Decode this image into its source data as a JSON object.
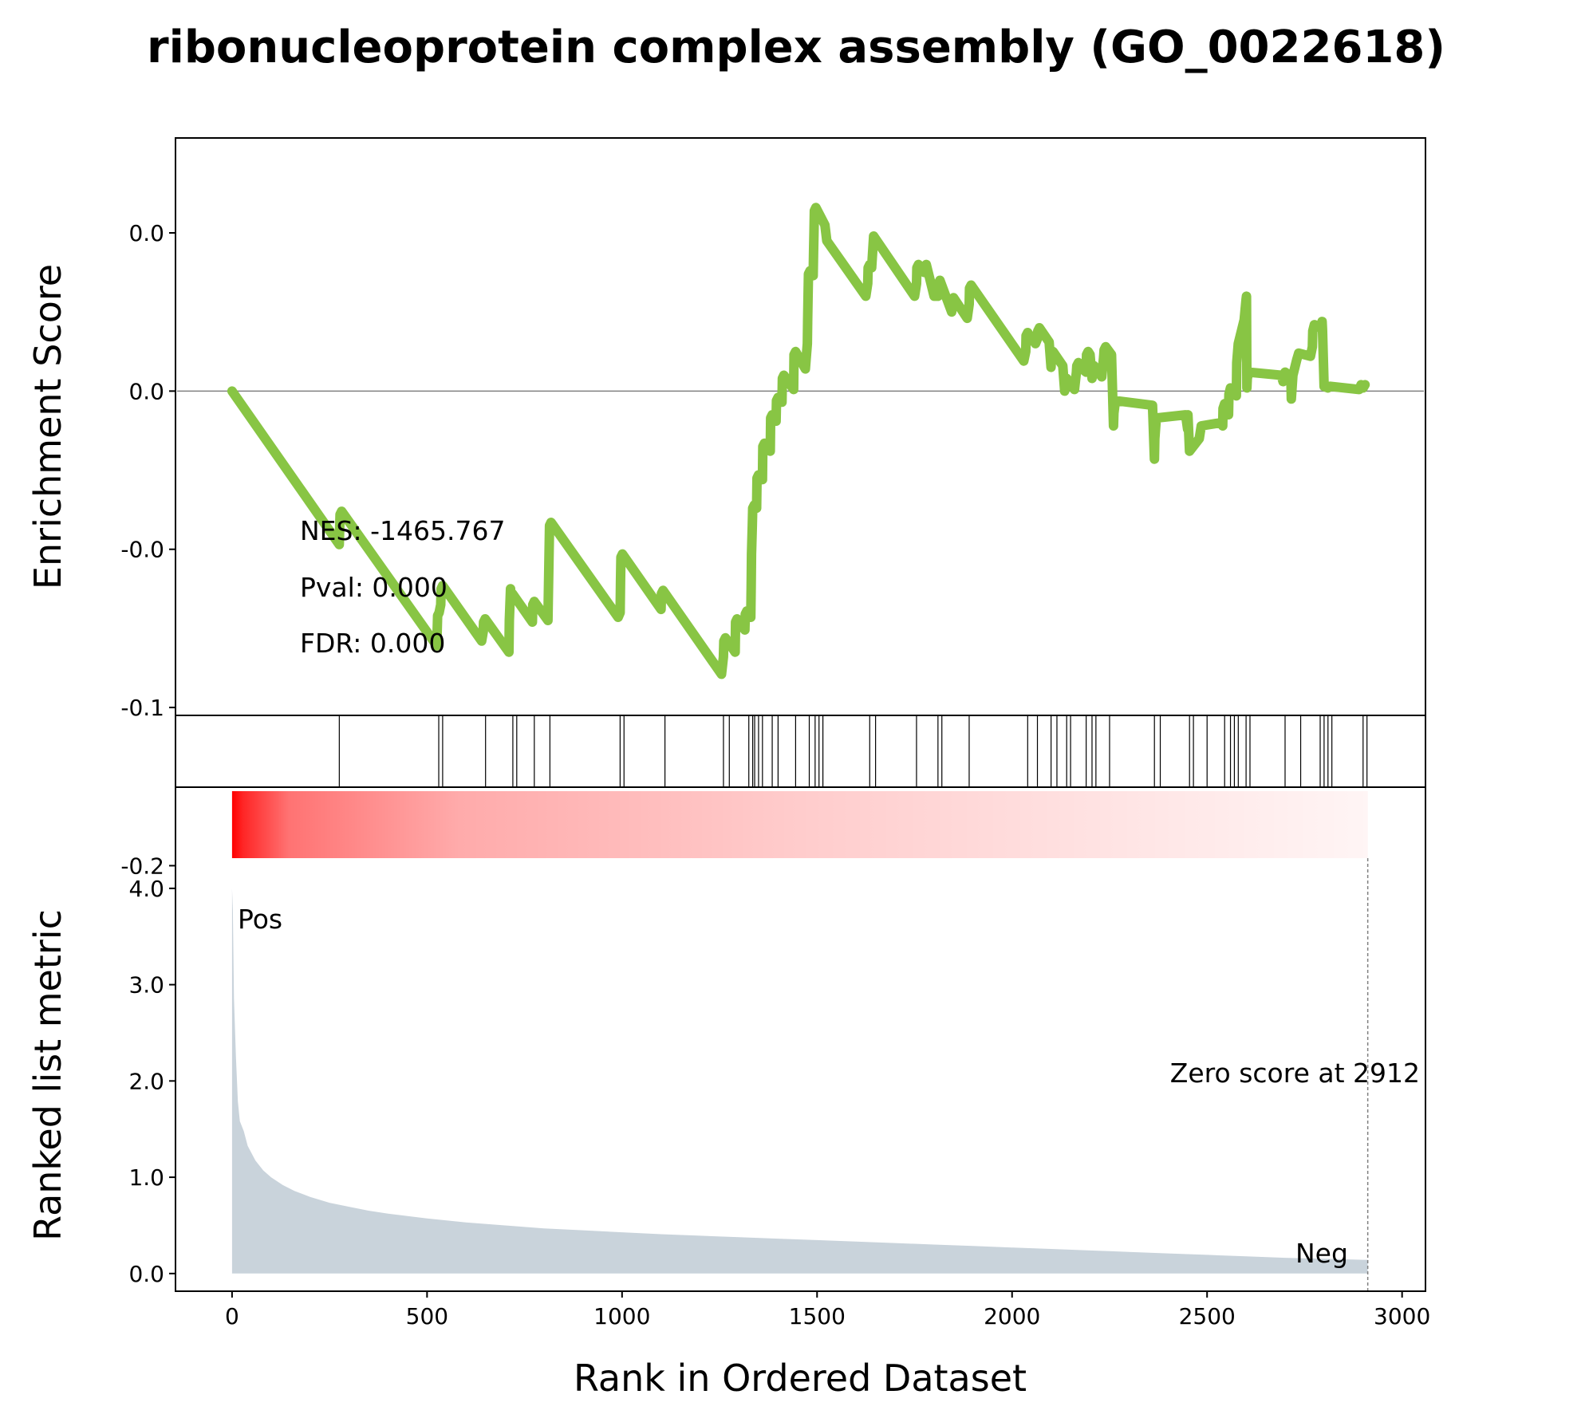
{
  "chart_data": {
    "type": "line",
    "title": "ribonucleoprotein complex assembly (GO_0022618)",
    "xlabel": "Rank in Ordered Dataset",
    "xlim": [
      -145,
      3060
    ],
    "x_ticks": [
      "0",
      "500",
      "1000",
      "1500",
      "2000",
      "2500",
      "3000"
    ],
    "colors": {
      "es_line": "#88c544",
      "metric_fill": "#c9d3db",
      "pos_label": "#ff0000",
      "neg_label": "#0000ff",
      "heat": "#ff0000"
    },
    "enrichment": {
      "ylabel": "Enrichment Score",
      "ylim": [
        -0.205,
        0.16
      ],
      "y_ticks": [
        {
          "value": 0.1,
          "label": "0.0"
        },
        {
          "value": 0.0,
          "label": "0.0"
        },
        {
          "value": -0.1,
          "label": "-0.0"
        },
        {
          "value": -0.2,
          "label": "-0.1"
        },
        {
          "value": -0.3,
          "label": "-0.2"
        }
      ],
      "stats": {
        "nes": "NES: -1465.767",
        "pval": "Pval: 0.000",
        "fdr": "FDR: 0.000"
      },
      "es_x": [
        0,
        275,
        276,
        277,
        281,
        525,
        526,
        527,
        531,
        535,
        536,
        540,
        640,
        644,
        645,
        649,
        710,
        711,
        714,
        715,
        719,
        770,
        771,
        775,
        810,
        811,
        812,
        813,
        814,
        818,
        990,
        995,
        996,
        997,
        1001,
        1100,
        1101,
        1105,
        1255,
        1260,
        1261,
        1265,
        1290,
        1291,
        1295,
        1315,
        1316,
        1320,
        1330,
        1331,
        1332,
        1334,
        1335,
        1339,
        1345,
        1346,
        1350,
        1360,
        1361,
        1365,
        1380,
        1381,
        1385,
        1395,
        1396,
        1400,
        1410,
        1411,
        1415,
        1440,
        1441,
        1445,
        1470,
        1475,
        1476,
        1477,
        1478,
        1482,
        1490,
        1491,
        1492,
        1493,
        1497,
        1520,
        1525,
        1625,
        1630,
        1631,
        1635,
        1640,
        1645,
        1750,
        1755,
        1756,
        1760,
        1775,
        1780,
        1800,
        1810,
        1811,
        1815,
        1845,
        1850,
        1885,
        1890,
        1891,
        1895,
        2030,
        2035,
        2036,
        2040,
        2060,
        2065,
        2066,
        2070,
        2095,
        2100,
        2101,
        2105,
        2130,
        2135,
        2136,
        2140,
        2160,
        2165,
        2166,
        2170,
        2185,
        2190,
        2191,
        2195,
        2200,
        2205,
        2206,
        2210,
        2230,
        2235,
        2236,
        2240,
        2255,
        2260,
        2261,
        2265,
        2360,
        2365,
        2366,
        2370,
        2445,
        2450,
        2451,
        2455,
        2480,
        2485,
        2535,
        2540,
        2541,
        2545,
        2550,
        2555,
        2556,
        2560,
        2570,
        2575,
        2576,
        2580,
        2595,
        2600,
        2601,
        2602,
        2603,
        2607,
        2690,
        2695,
        2696,
        2700,
        2710,
        2715,
        2716,
        2720,
        2730,
        2735,
        2765,
        2770,
        2771,
        2775,
        2790,
        2795,
        2796,
        2800,
        2810,
        2815,
        2890,
        2895,
        2900,
        2905,
        2910,
        2915,
        2920
      ],
      "es_y": [
        0.0,
        -0.097,
        -0.087,
        -0.078,
        -0.076,
        -0.161,
        -0.151,
        -0.142,
        -0.14,
        -0.135,
        -0.125,
        -0.123,
        -0.158,
        -0.152,
        -0.146,
        -0.144,
        -0.165,
        -0.145,
        -0.125,
        -0.13,
        -0.128,
        -0.146,
        -0.135,
        -0.133,
        -0.145,
        -0.13,
        -0.115,
        -0.1,
        -0.085,
        -0.083,
        -0.143,
        -0.14,
        -0.12,
        -0.105,
        -0.103,
        -0.138,
        -0.128,
        -0.126,
        -0.179,
        -0.168,
        -0.158,
        -0.156,
        -0.165,
        -0.146,
        -0.144,
        -0.151,
        -0.141,
        -0.139,
        -0.143,
        -0.123,
        -0.103,
        -0.085,
        -0.074,
        -0.072,
        -0.074,
        -0.055,
        -0.053,
        -0.056,
        -0.035,
        -0.033,
        -0.038,
        -0.017,
        -0.015,
        -0.019,
        -0.006,
        -0.004,
        -0.007,
        0.008,
        0.01,
        0.001,
        0.023,
        0.025,
        0.014,
        0.03,
        0.045,
        0.06,
        0.074,
        0.076,
        0.073,
        0.088,
        0.1,
        0.114,
        0.116,
        0.105,
        0.095,
        0.06,
        0.068,
        0.078,
        0.08,
        0.078,
        0.098,
        0.06,
        0.068,
        0.078,
        0.08,
        0.075,
        0.08,
        0.06,
        0.06,
        0.068,
        0.07,
        0.05,
        0.059,
        0.046,
        0.055,
        0.065,
        0.067,
        0.019,
        0.025,
        0.035,
        0.037,
        0.03,
        0.033,
        0.038,
        0.04,
        0.031,
        0.015,
        0.023,
        0.025,
        0.016,
        0.0,
        0.006,
        0.008,
        0.001,
        0.012,
        0.016,
        0.018,
        0.013,
        0.012,
        0.023,
        0.025,
        0.023,
        0.008,
        0.014,
        0.016,
        0.009,
        0.022,
        0.026,
        0.028,
        0.023,
        -0.022,
        -0.014,
        -0.006,
        -0.009,
        -0.043,
        -0.03,
        -0.017,
        -0.015,
        -0.024,
        -0.015,
        -0.038,
        -0.03,
        -0.022,
        -0.02,
        -0.022,
        -0.011,
        -0.008,
        -0.01,
        -0.015,
        -0.002,
        0.002,
        0.0,
        -0.003,
        0.018,
        0.03,
        0.045,
        0.058,
        0.06,
        0.002,
        0.008,
        0.012,
        0.01,
        0.006,
        0.008,
        0.012,
        0.01,
        0.008,
        -0.005,
        0.01,
        0.02,
        0.024,
        0.022,
        0.028,
        0.038,
        0.042,
        0.04,
        0.044,
        0.039,
        0.003,
        0.002,
        0.003,
        0.001,
        0.004,
        0.002,
        0.004
      ]
    },
    "hits": {
      "x": [
        275,
        530,
        540,
        650,
        720,
        730,
        775,
        815,
        995,
        1005,
        1110,
        1260,
        1275,
        1325,
        1335,
        1340,
        1350,
        1360,
        1385,
        1400,
        1445,
        1480,
        1495,
        1505,
        1515,
        1635,
        1650,
        1755,
        1810,
        1820,
        1890,
        2040,
        2065,
        2100,
        2115,
        2140,
        2150,
        2190,
        2205,
        2215,
        2250,
        2365,
        2380,
        2455,
        2465,
        2500,
        2545,
        2560,
        2570,
        2580,
        2600,
        2610,
        2700,
        2740,
        2790,
        2800,
        2810,
        2820,
        2900,
        2910
      ]
    },
    "ranked": {
      "ylabel": "Ranked list metric",
      "ylim": [
        -0.18,
        4.95
      ],
      "y_ticks": [
        {
          "value": 0.0,
          "label": "0.0"
        },
        {
          "value": 0.98,
          "label": "1.0"
        },
        {
          "value": 1.96,
          "label": "2.0"
        },
        {
          "value": 2.94,
          "label": "3.0"
        },
        {
          "value": 3.92,
          "label": "4.0"
        }
      ],
      "pos_label": "Pos",
      "neg_label": "Neg",
      "zero_label": "Zero score at 2912",
      "zero_at": 2912,
      "metric_x": [
        0,
        2,
        5,
        10,
        15,
        20,
        30,
        40,
        60,
        80,
        100,
        130,
        160,
        200,
        250,
        300,
        350,
        400,
        450,
        500,
        600,
        700,
        800,
        900,
        1000,
        1100,
        1200,
        1300,
        1400,
        1500,
        1600,
        1700,
        1800,
        1900,
        2000,
        2100,
        2200,
        2300,
        2400,
        2500,
        2600,
        2700,
        2800,
        2900,
        2912
      ],
      "metric_y": [
        3.92,
        3.7,
        2.8,
        2.2,
        1.75,
        1.55,
        1.45,
        1.3,
        1.15,
        1.05,
        0.98,
        0.9,
        0.84,
        0.78,
        0.72,
        0.68,
        0.64,
        0.61,
        0.585,
        0.56,
        0.52,
        0.49,
        0.46,
        0.44,
        0.42,
        0.4,
        0.385,
        0.37,
        0.355,
        0.34,
        0.325,
        0.31,
        0.295,
        0.28,
        0.265,
        0.25,
        0.235,
        0.22,
        0.205,
        0.19,
        0.175,
        0.16,
        0.15,
        0.14,
        0.14
      ]
    }
  }
}
